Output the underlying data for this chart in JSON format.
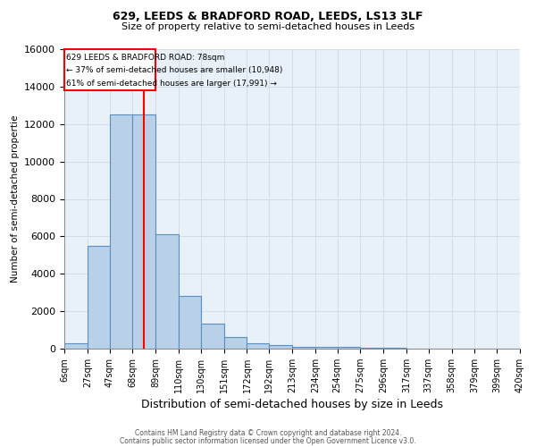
{
  "title1": "629, LEEDS & BRADFORD ROAD, LEEDS, LS13 3LF",
  "title2": "Size of property relative to semi-detached houses in Leeds",
  "xlabel": "Distribution of semi-detached houses by size in Leeds",
  "ylabel": "Number of semi-detached propertie",
  "bar_values": [
    300,
    5500,
    12500,
    12500,
    6100,
    2800,
    1350,
    600,
    300,
    175,
    100,
    75,
    75,
    40,
    30,
    20,
    10,
    5,
    5,
    5
  ],
  "bin_labels": [
    "6sqm",
    "27sqm",
    "47sqm",
    "68sqm",
    "89sqm",
    "110sqm",
    "130sqm",
    "151sqm",
    "172sqm",
    "192sqm",
    "213sqm",
    "234sqm",
    "254sqm",
    "275sqm",
    "296sqm",
    "317sqm",
    "337sqm",
    "358sqm",
    "379sqm",
    "399sqm",
    "420sqm"
  ],
  "bar_color": "#b8d0e8",
  "bar_edge_color": "#5a90c0",
  "grid_color": "#d0d8e4",
  "bg_color": "#e8f0f8",
  "red_line_x": 78,
  "pct_smaller": 37,
  "n_smaller": "10,948",
  "pct_larger": 61,
  "n_larger": "17,991",
  "annotation_label": "629 LEEDS & BRADFORD ROAD: 78sqm",
  "ylim": [
    0,
    16000
  ],
  "yticks": [
    0,
    2000,
    4000,
    6000,
    8000,
    10000,
    12000,
    14000,
    16000
  ],
  "bin_edges": [
    6,
    27,
    47,
    68,
    89,
    110,
    130,
    151,
    172,
    192,
    213,
    234,
    254,
    275,
    296,
    317,
    337,
    358,
    379,
    399,
    420
  ],
  "footer1": "Contains HM Land Registry data © Crown copyright and database right 2024.",
  "footer2": "Contains public sector information licensed under the Open Government Licence v3.0."
}
